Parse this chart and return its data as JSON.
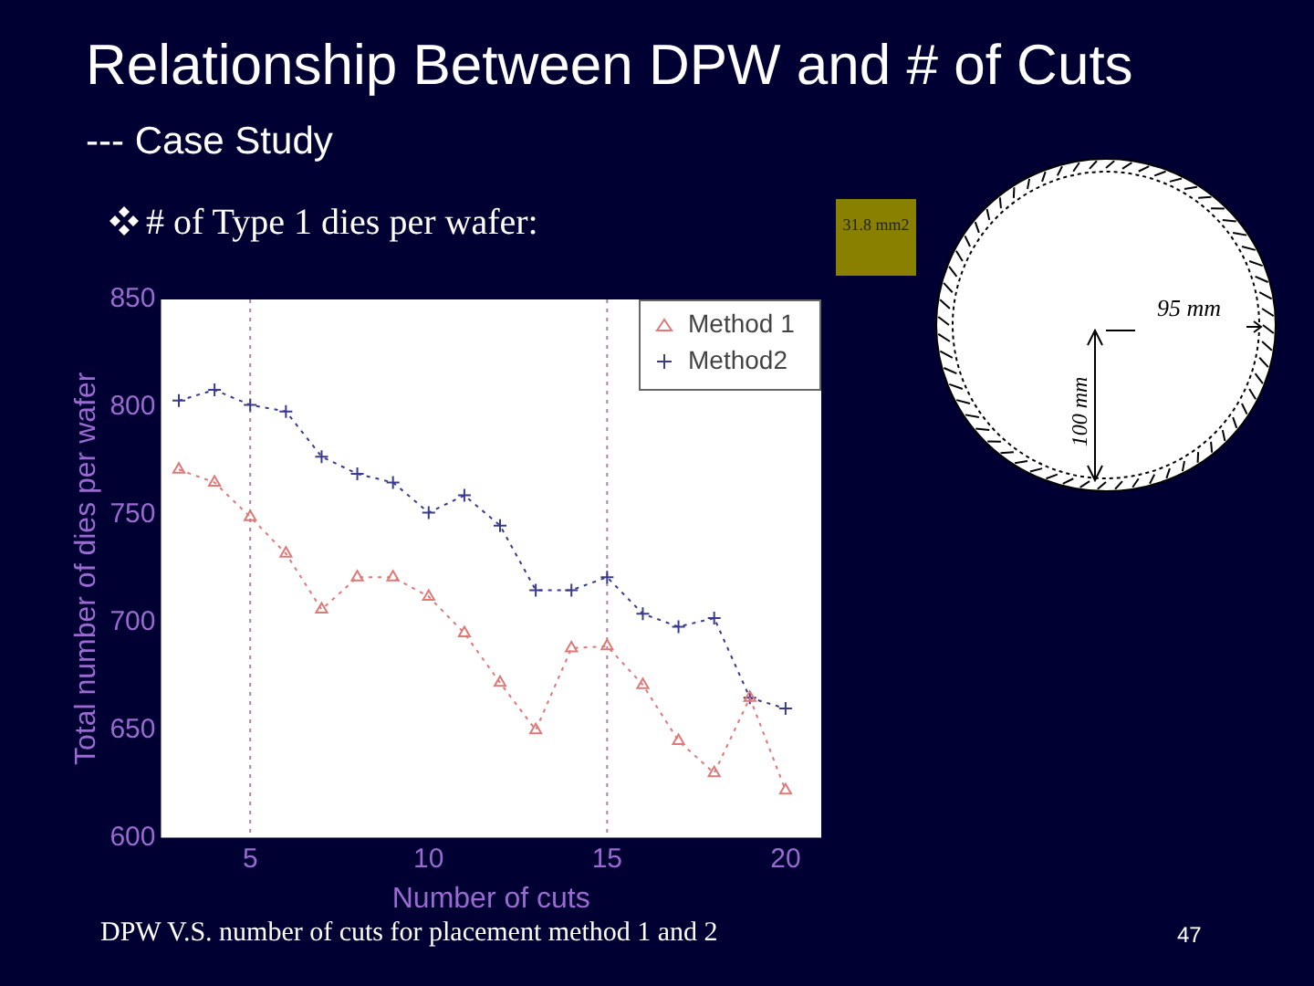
{
  "chart_data": {
    "type": "line",
    "title": "Relationship Between DPW and # of Cuts",
    "subtitle": "--- Case Study",
    "xlabel": "Number of cuts",
    "ylabel": "Total number of dies per wafer",
    "x": [
      3,
      4,
      5,
      6,
      7,
      8,
      9,
      10,
      11,
      12,
      13,
      14,
      15,
      16,
      17,
      18,
      19,
      20
    ],
    "series": [
      {
        "name": "Method 1",
        "color": "#e07878",
        "marker": "triangle",
        "values": [
          771,
          765,
          749,
          732,
          706,
          721,
          721,
          712,
          695,
          672,
          650,
          688,
          689,
          671,
          645,
          630,
          665,
          622
        ]
      },
      {
        "name": "Method2",
        "color": "#3a3a8c",
        "marker": "cross",
        "values": [
          803,
          808,
          801,
          798,
          777,
          769,
          765,
          751,
          759,
          745,
          715,
          715,
          721,
          704,
          698,
          702,
          665,
          660
        ]
      }
    ],
    "xlim": [
      2.5,
      21
    ],
    "xticks": [
      5,
      10,
      15,
      20
    ],
    "ylim": [
      600,
      850
    ],
    "yticks": [
      600,
      650,
      700,
      750,
      800,
      850
    ],
    "ref_lines": [
      {
        "axis": "x",
        "value": 5,
        "color": "#b080b0",
        "line_style": "dotted"
      },
      {
        "axis": "x",
        "value": 15,
        "color": "#b080b0",
        "line_style": "dotted"
      }
    ],
    "line_style": "dotted",
    "grid": false,
    "legend": "top right",
    "annotations": [
      "# of Type 1 dies per wafer:",
      "31.8 mm2",
      "95 mm",
      "100 mm",
      "DPW  V.S.  number of cuts for placement method 1 and 2",
      "47"
    ]
  }
}
